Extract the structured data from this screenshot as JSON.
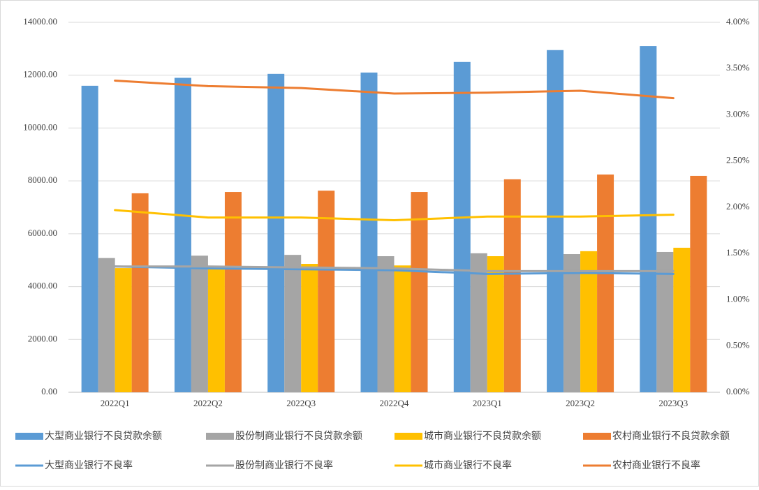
{
  "chart_data": {
    "type": "bar_line",
    "categories": [
      "2022Q1",
      "2022Q2",
      "2022Q3",
      "2022Q4",
      "2023Q1",
      "2023Q2",
      "2023Q3"
    ],
    "series": [
      {
        "name": "大型商业银行不良贷款余额",
        "type": "bar",
        "color": "#5b9bd5",
        "values": [
          11600,
          11900,
          12050,
          12100,
          12500,
          12950,
          13100
        ]
      },
      {
        "name": "股份制商业银行不良贷款余额",
        "type": "bar",
        "color": "#a5a5a5",
        "values": [
          5080,
          5170,
          5200,
          5150,
          5260,
          5230,
          5310
        ]
      },
      {
        "name": "城市商业银行不良贷款余额",
        "type": "bar",
        "color": "#ffc000",
        "values": [
          4700,
          4700,
          4860,
          4800,
          5150,
          5340,
          5470
        ]
      },
      {
        "name": "农村商业银行不良贷款余额",
        "type": "bar",
        "color": "#ed7d31",
        "values": [
          7530,
          7580,
          7630,
          7580,
          8060,
          8240,
          8190
        ]
      },
      {
        "name": "大型商业银行不良率",
        "type": "line",
        "axis": "y2",
        "color": "#5b9bd5",
        "values": [
          1.36,
          1.34,
          1.33,
          1.32,
          1.28,
          1.29,
          1.28
        ]
      },
      {
        "name": "股份制商业银行不良率",
        "type": "line",
        "axis": "y2",
        "color": "#a5a5a5",
        "values": [
          1.36,
          1.36,
          1.35,
          1.34,
          1.31,
          1.31,
          1.31
        ]
      },
      {
        "name": "城市商业银行不良率",
        "type": "line",
        "axis": "y2",
        "color": "#ffc000",
        "values": [
          1.97,
          1.89,
          1.89,
          1.86,
          1.9,
          1.9,
          1.92
        ]
      },
      {
        "name": "农村商业银行不良率",
        "type": "line",
        "axis": "y2",
        "color": "#ed7d31",
        "values": [
          3.37,
          3.31,
          3.29,
          3.23,
          3.24,
          3.26,
          3.18
        ]
      }
    ],
    "ylim": [
      0,
      14000
    ],
    "yticks": [
      {
        "value": 0,
        "label": "0.00"
      },
      {
        "value": 2000,
        "label": "2000.00"
      },
      {
        "value": 4000,
        "label": "4000.00"
      },
      {
        "value": 6000,
        "label": "6000.00"
      },
      {
        "value": 8000,
        "label": "8000.00"
      },
      {
        "value": 10000,
        "label": "10000.00"
      },
      {
        "value": 12000,
        "label": "12000.00"
      },
      {
        "value": 14000,
        "label": "14000.00"
      }
    ],
    "y2lim": [
      0,
      4
    ],
    "y2ticks": [
      {
        "value": 0,
        "label": "0.00%"
      },
      {
        "value": 0.5,
        "label": "0.50%"
      },
      {
        "value": 1,
        "label": "1.00%"
      },
      {
        "value": 1.5,
        "label": "1.50%"
      },
      {
        "value": 2,
        "label": "2.00%"
      },
      {
        "value": 2.5,
        "label": "2.50%"
      },
      {
        "value": 3,
        "label": "3.00%"
      },
      {
        "value": 3.5,
        "label": "3.50%"
      },
      {
        "value": 4,
        "label": "4.00%"
      }
    ],
    "grid": true,
    "legend": "bottom"
  }
}
